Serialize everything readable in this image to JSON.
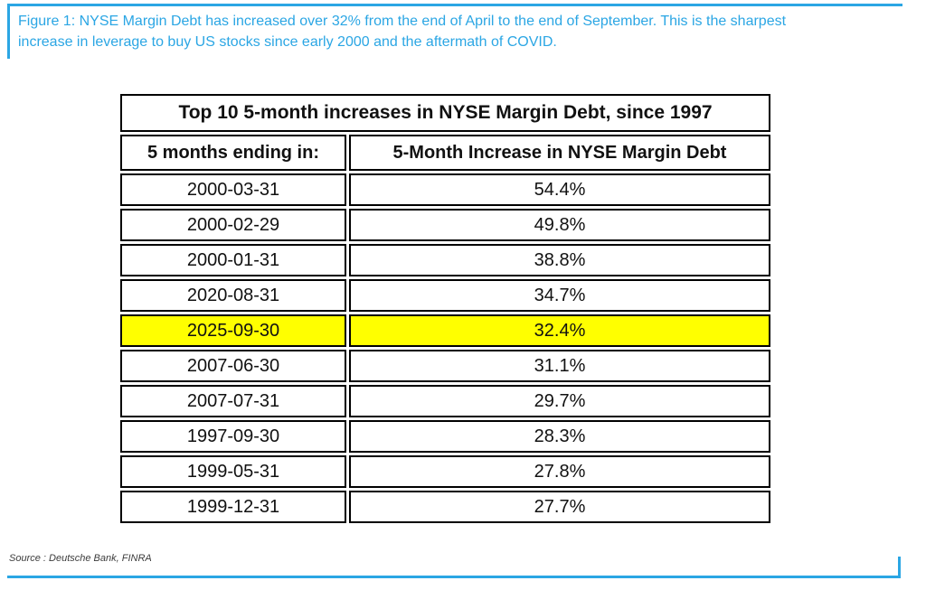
{
  "caption": {
    "lines": [
      "Figure 1: NYSE Margin Debt has increased over 32% from the end of April to the end of September. This is the sharpest",
      "increase in leverage to buy US stocks since early 2000 and the aftermath of COVID."
    ]
  },
  "table": {
    "title": "Top 10 5-month increases in NYSE Margin Debt, since 1997",
    "columns": [
      "5 months ending in:",
      "5-Month Increase in NYSE Margin Debt"
    ],
    "rows": [
      {
        "date": "2000-03-31",
        "increase": "54.4%",
        "highlight": false
      },
      {
        "date": "2000-02-29",
        "increase": "49.8%",
        "highlight": false
      },
      {
        "date": "2000-01-31",
        "increase": "38.8%",
        "highlight": false
      },
      {
        "date": "2020-08-31",
        "increase": "34.7%",
        "highlight": false
      },
      {
        "date": "2025-09-30",
        "increase": "32.4%",
        "highlight": true
      },
      {
        "date": "2007-06-30",
        "increase": "31.1%",
        "highlight": false
      },
      {
        "date": "2007-07-31",
        "increase": "29.7%",
        "highlight": false
      },
      {
        "date": "1997-09-30",
        "increase": "28.3%",
        "highlight": false
      },
      {
        "date": "1999-05-31",
        "increase": "27.8%",
        "highlight": false
      },
      {
        "date": "1999-12-31",
        "increase": "27.7%",
        "highlight": false
      }
    ]
  },
  "source": {
    "text": "Source : Deutsche Bank, FINRA"
  },
  "colors": {
    "accent_blue": "#2BA6E4",
    "highlight_yellow": "#FFFF00",
    "border_black": "#000000"
  }
}
